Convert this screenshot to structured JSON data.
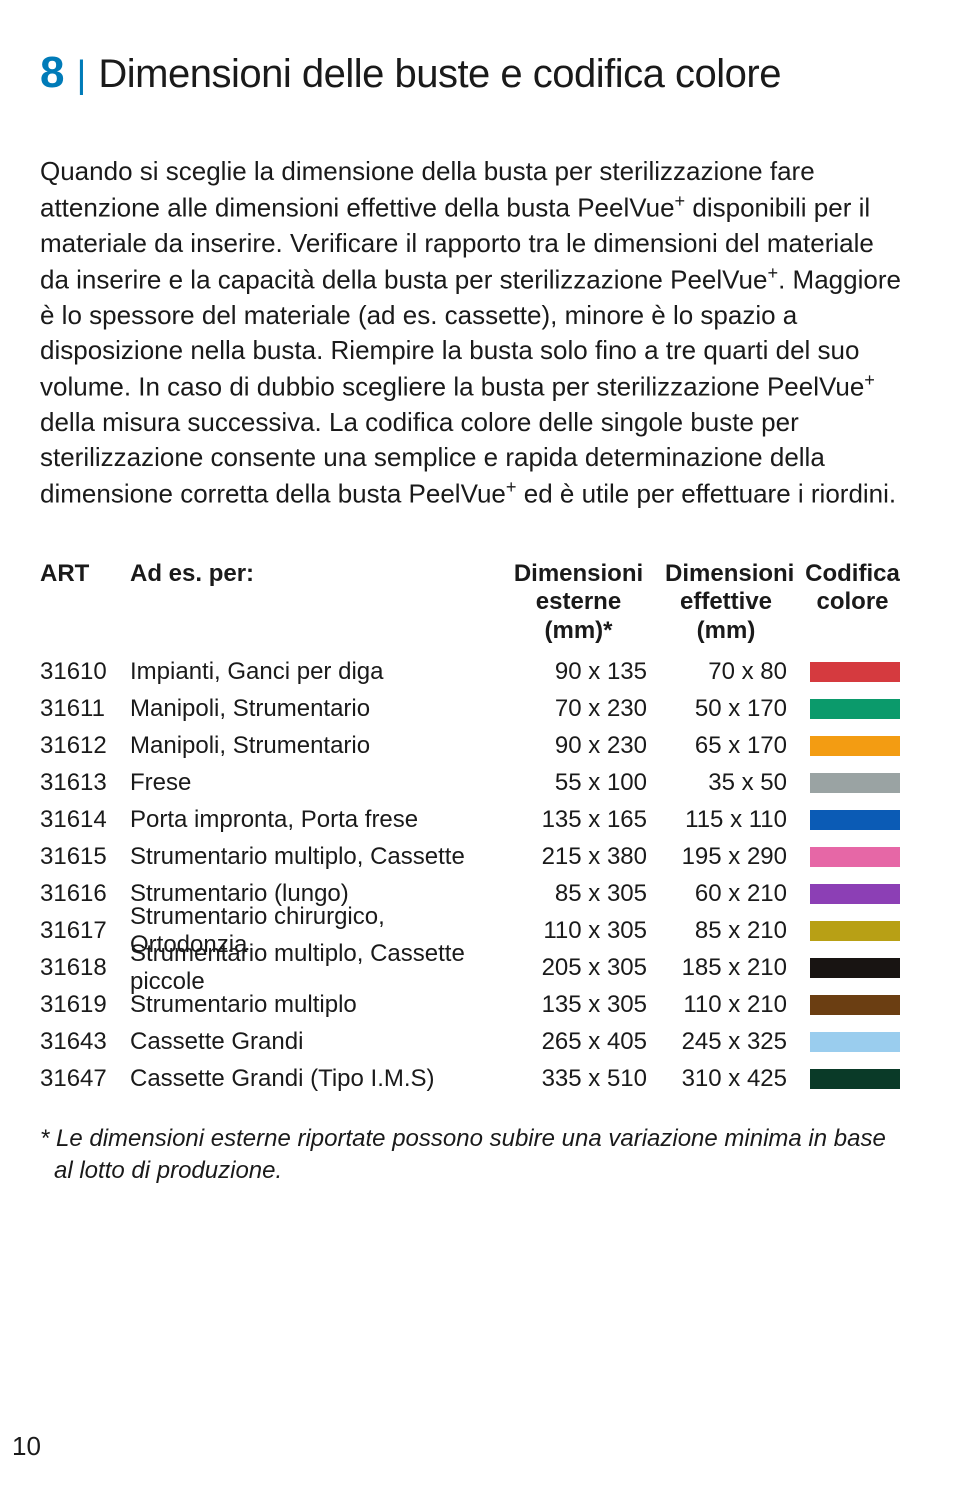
{
  "header": {
    "number": "8",
    "divider": "|",
    "title": "Dimensioni delle buste e codifica colore"
  },
  "paragraph": {
    "p1": "Quando si sceglie la dimensione della busta per sterilizzazione fare attenzione alle dimensioni effettive della busta PeelVue",
    "sup1": "+",
    "p2": " disponibili per il materiale da inserire. Verificare il rapporto tra le dimensioni del materiale da inserire e la capacità della busta per sterilizzazione PeelVue",
    "sup2": "+",
    "p3": ". Maggiore è lo spessore del materiale (ad es. cassette), minore è lo spazio a disposizione nella busta. Riempire la busta solo fino a tre quarti del suo volume. In caso di dubbio scegliere la busta per sterilizzazione PeelVue",
    "sup3": "+",
    "p4": " della misura successiva. La codifica colore delle singole buste per sterilizzazione consente una semplice e rapida determinazione della dimensione corretta della busta PeelVue",
    "sup4": "+",
    "p5": " ed è utile per effettuare i riordini."
  },
  "table": {
    "headers": {
      "art": "ART",
      "desc": "Ad es. per:",
      "ext_l1": "Dimensioni",
      "ext_l2": "esterne",
      "ext_l3": "(mm)*",
      "eff_l1": "Dimensioni",
      "eff_l2": "effettive",
      "eff_l3": "(mm)",
      "swatch_l1": "Codifica",
      "swatch_l2": "colore"
    },
    "rows": [
      {
        "art": "31610",
        "desc": "Impianti, Ganci per diga",
        "ext": "90 x 135",
        "eff": "70 x 80",
        "color": "#d53a3f"
      },
      {
        "art": "31611",
        "desc": "Manipoli, Strumentario",
        "ext": "70 x 230",
        "eff": "50 x 170",
        "color": "#0b9a6b"
      },
      {
        "art": "31612",
        "desc": "Manipoli, Strumentario",
        "ext": "90 x 230",
        "eff": "65 x 170",
        "color": "#f39c12"
      },
      {
        "art": "31613",
        "desc": "Frese",
        "ext": "55 x 100",
        "eff": "35 x 50",
        "color": "#9aa3a3"
      },
      {
        "art": "31614",
        "desc": "Porta impronta, Porta frese",
        "ext": "135 x 165",
        "eff": "115 x 110",
        "color": "#0b5bb5"
      },
      {
        "art": "31615",
        "desc": "Strumentario multiplo, Cassette",
        "ext": "215 x 380",
        "eff": "195 x 290",
        "color": "#e667a6"
      },
      {
        "art": "31616",
        "desc": "Strumentario (lungo)",
        "ext": "85 x 305",
        "eff": "60 x 210",
        "color": "#8c3fb5"
      },
      {
        "art": "31617",
        "desc": "Strumentario chirurgico, Ortodonzia",
        "ext": "110 x 305",
        "eff": "85 x 210",
        "color": "#b8a015"
      },
      {
        "art": "31618",
        "desc": "Strumentario multiplo, Cassette piccole",
        "ext": "205 x 305",
        "eff": "185 x 210",
        "color": "#181412"
      },
      {
        "art": "31619",
        "desc": "Strumentario multiplo",
        "ext": "135 x 305",
        "eff": "110 x 210",
        "color": "#6b3e12"
      },
      {
        "art": "31643",
        "desc": "Cassette Grandi",
        "ext": "265 x 405",
        "eff": "245 x 325",
        "color": "#9acdee"
      },
      {
        "art": "31647",
        "desc": "Cassette Grandi (Tipo I.M.S)",
        "ext": "335 x 510",
        "eff": "310 x 425",
        "color": "#0a3a28"
      }
    ]
  },
  "footnote": "* Le dimensioni esterne riportate possono subire una variazione minima in base al lotto di produzione.",
  "page_number": "10"
}
